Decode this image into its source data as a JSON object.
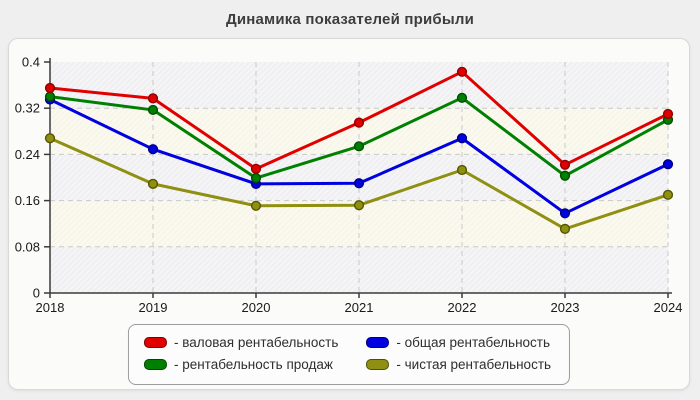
{
  "page": {
    "title": "Динамика показателей прибыли"
  },
  "chart_data": {
    "type": "line",
    "title": "Динамика показателей прибыли",
    "x": [
      2018,
      2019,
      2020,
      2021,
      2022,
      2023,
      2024
    ],
    "series": [
      {
        "key": "gross-profitability",
        "name": "валовая рентабельность",
        "color": "#e10000",
        "border": "#8f0000",
        "values": [
          0.355,
          0.337,
          0.215,
          0.295,
          0.383,
          0.222,
          0.31
        ]
      },
      {
        "key": "total-profitability",
        "name": "общая рентабельность",
        "color": "#0000e0",
        "border": "#000080",
        "values": [
          0.335,
          0.249,
          0.189,
          0.19,
          0.268,
          0.138,
          0.223
        ]
      },
      {
        "key": "sales-profitability",
        "name": "рентабельность продаж",
        "color": "#008000",
        "border": "#004d00",
        "values": [
          0.34,
          0.317,
          0.199,
          0.254,
          0.338,
          0.203,
          0.3
        ]
      },
      {
        "key": "net-profitability",
        "name": "чистая рентабельность",
        "color": "#8f8f12",
        "border": "#565600",
        "values": [
          0.268,
          0.189,
          0.151,
          0.152,
          0.213,
          0.111,
          0.17
        ]
      }
    ],
    "xlabel": "",
    "ylabel": "",
    "ylim": [
      0,
      0.4
    ],
    "yticks": [
      0,
      0.08,
      0.16,
      0.24,
      0.32,
      0.4
    ],
    "grid": true,
    "legend_position": "bottom",
    "legend_prefix": "- ",
    "colors": {
      "band_even": "#f0f0f3",
      "band_odd": "#f8f6e9",
      "gridline": "#c9c9c9",
      "axis": "#3a3a3a",
      "tick_label": "#1a1a1a"
    }
  }
}
